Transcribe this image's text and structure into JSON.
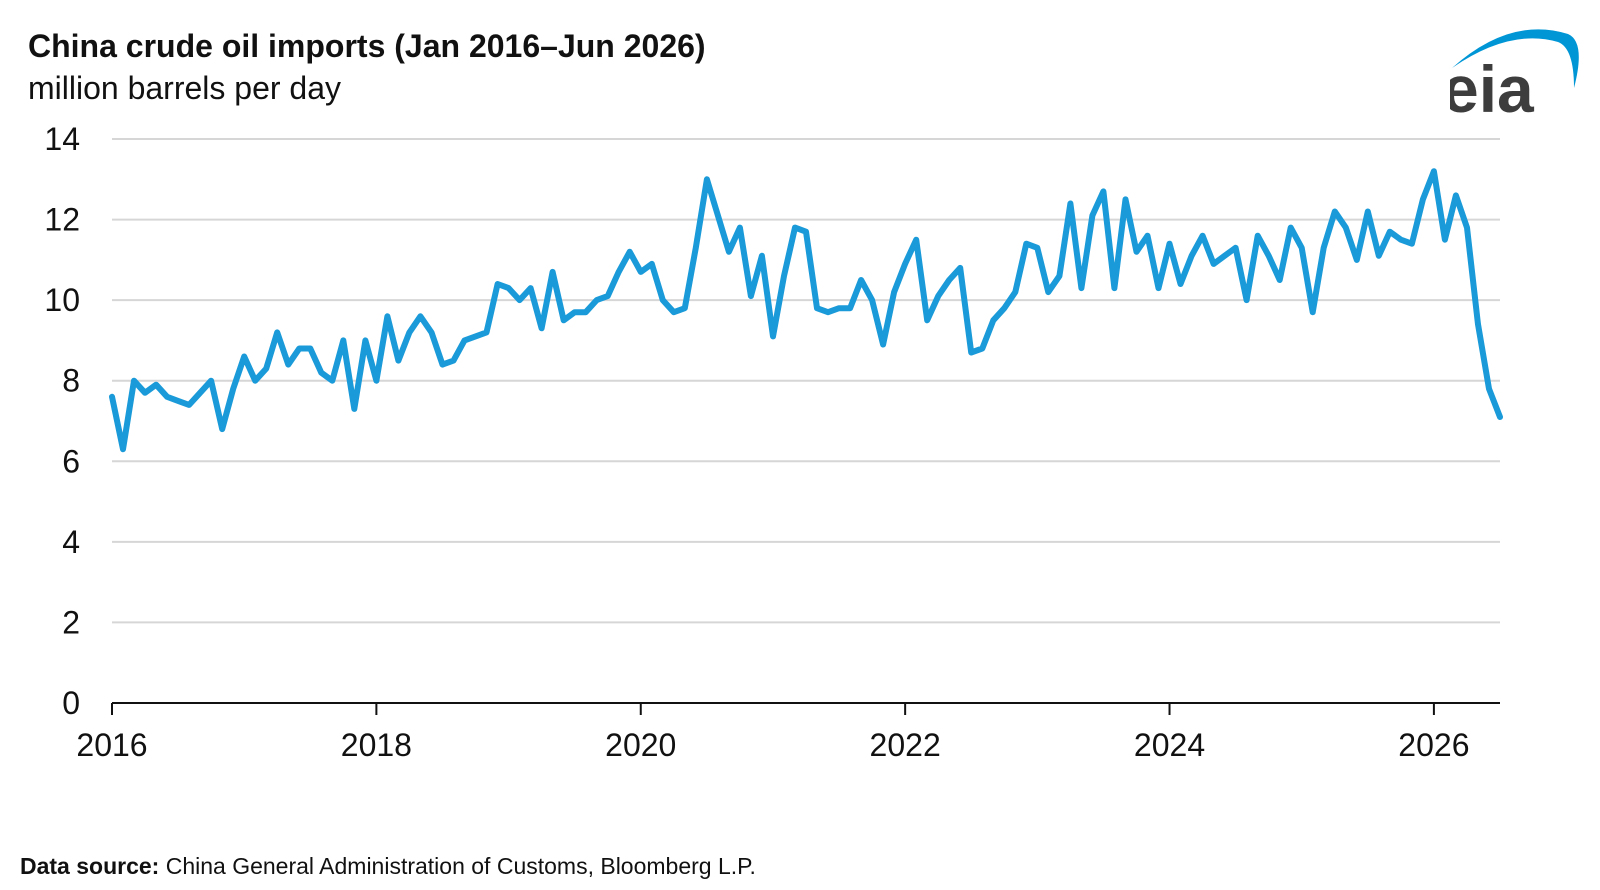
{
  "header": {
    "title": "China crude oil imports (Jan 2016–Jun 2026)",
    "subtitle": "million barrels per day"
  },
  "logo": {
    "text": "eia",
    "color": "#3d3d3d",
    "swoosh_color": "#0096d6"
  },
  "footer": {
    "source_label": "Data source:",
    "source_text": "China General Administration of Customs, Bloomberg L.P."
  },
  "colors": {
    "line": "#1a9ad8",
    "grid": "#d6d6d6",
    "axis": "#111111"
  },
  "chart_data": {
    "type": "line",
    "title": "China crude oil imports (Jan 2016–Jun 2026)",
    "ylabel": "million barrels per day",
    "xlabel": "",
    "xlim": [
      2016,
      2026.5
    ],
    "ylim": [
      0,
      14
    ],
    "yticks": [
      0,
      2,
      4,
      6,
      8,
      10,
      12,
      14
    ],
    "xticks": [
      2016,
      2018,
      2020,
      2022,
      2024,
      2026
    ],
    "grid": true,
    "start": "2016-01",
    "series": [
      {
        "values": [
          7.6,
          6.3,
          8.0,
          7.7,
          7.9,
          7.6,
          7.5,
          7.4,
          7.7,
          8.0,
          6.8,
          7.8,
          8.6,
          8.0,
          8.3,
          9.2,
          8.4,
          8.8,
          8.8,
          8.2,
          8.0,
          9.0,
          7.3,
          9.0,
          8.0,
          9.6,
          8.5,
          9.2,
          9.6,
          9.2,
          8.4,
          8.5,
          9.0,
          9.1,
          9.2,
          10.4,
          10.3,
          10.0,
          10.3,
          9.3,
          10.7,
          9.5,
          9.7,
          9.7,
          10.0,
          10.1,
          10.7,
          11.2,
          10.7,
          10.9,
          10.0,
          9.7,
          9.8,
          11.3,
          13.0,
          12.1,
          11.2,
          11.8,
          10.1,
          11.1,
          9.1,
          10.6,
          11.8,
          11.7,
          9.8,
          9.7,
          9.8,
          9.8,
          10.5,
          10.0,
          8.9,
          10.2,
          10.9,
          11.5,
          9.5,
          10.1,
          10.5,
          10.8,
          8.7,
          8.8,
          9.5,
          9.8,
          10.2,
          11.4,
          11.3,
          10.2,
          10.6,
          12.4,
          10.3,
          12.1,
          12.7,
          10.3,
          12.5,
          11.2,
          11.6,
          10.3,
          11.4,
          10.4,
          11.1,
          11.6,
          10.9,
          11.1,
          11.3,
          10.0,
          11.6,
          11.1,
          10.5,
          11.8,
          11.3,
          9.7,
          11.3,
          12.2,
          11.8,
          11.0,
          12.2,
          11.1,
          11.7,
          11.5,
          11.4,
          12.5,
          13.2,
          11.5,
          12.6,
          11.8,
          9.4,
          7.8,
          7.1
        ]
      }
    ]
  }
}
